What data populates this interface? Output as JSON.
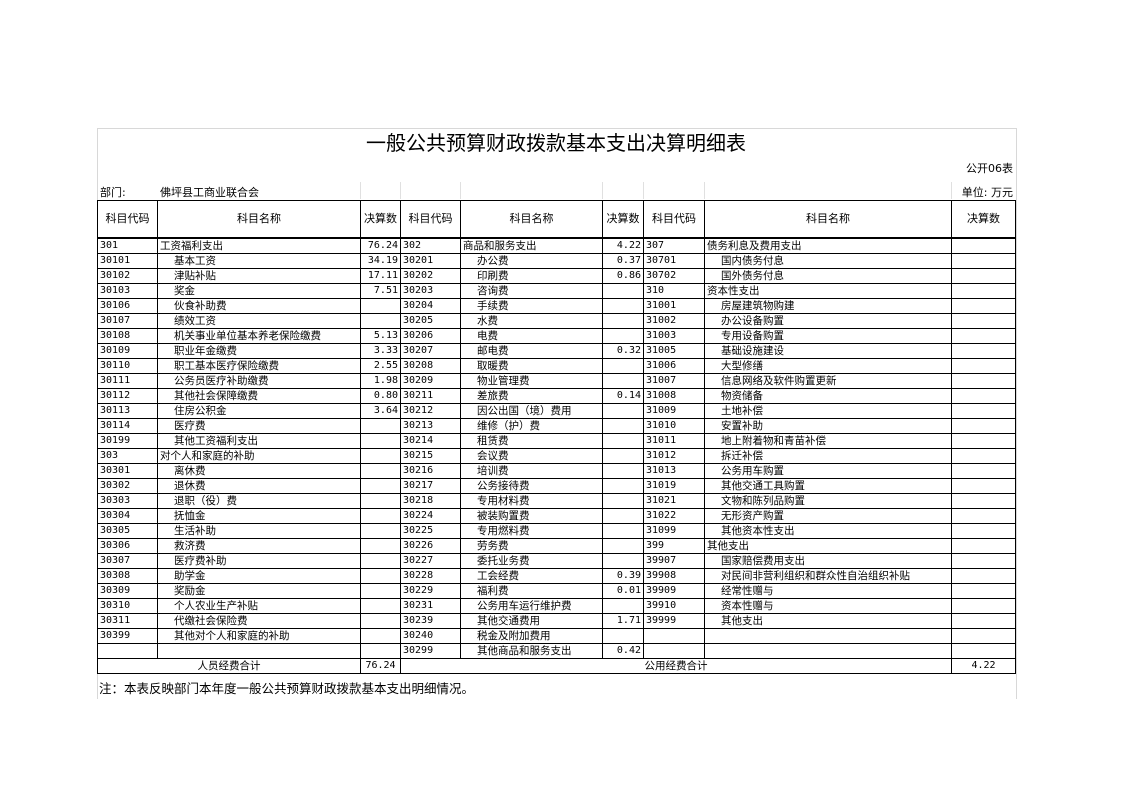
{
  "title": "一般公共预算财政拨款基本支出决算明细表",
  "form_no": "公开06表",
  "dept_label": "部门:",
  "dept_name": "佛坪县工商业联合会",
  "unit": "单位: 万元",
  "headers": [
    "科目代码",
    "科目名称",
    "决算数",
    "科目代码",
    "科目名称",
    "决算数",
    "科目代码",
    "科目名称",
    "决算数"
  ],
  "rows": [
    [
      [
        "301",
        "工资福利支出",
        "76.24",
        0
      ],
      [
        "302",
        "商品和服务支出",
        "4.22",
        0
      ],
      [
        "307",
        "债务利息及费用支出",
        "",
        0
      ]
    ],
    [
      [
        "30101",
        "基本工资",
        "34.19",
        1
      ],
      [
        "30201",
        "办公费",
        "0.37",
        1
      ],
      [
        "30701",
        "国内债务付息",
        "",
        1
      ]
    ],
    [
      [
        "30102",
        "津贴补贴",
        "17.11",
        1
      ],
      [
        "30202",
        "印刷费",
        "0.86",
        1
      ],
      [
        "30702",
        "国外债务付息",
        "",
        1
      ]
    ],
    [
      [
        "30103",
        "奖金",
        "7.51",
        1
      ],
      [
        "30203",
        "咨询费",
        "",
        1
      ],
      [
        "310",
        "资本性支出",
        "",
        0
      ]
    ],
    [
      [
        "30106",
        "伙食补助费",
        "",
        1
      ],
      [
        "30204",
        "手续费",
        "",
        1
      ],
      [
        "31001",
        "房屋建筑物购建",
        "",
        1
      ]
    ],
    [
      [
        "30107",
        "绩效工资",
        "",
        1
      ],
      [
        "30205",
        "水费",
        "",
        1
      ],
      [
        "31002",
        "办公设备购置",
        "",
        1
      ]
    ],
    [
      [
        "30108",
        "机关事业单位基本养老保险缴费",
        "5.13",
        1
      ],
      [
        "30206",
        "电费",
        "",
        1
      ],
      [
        "31003",
        "专用设备购置",
        "",
        1
      ]
    ],
    [
      [
        "30109",
        "职业年金缴费",
        "3.33",
        1
      ],
      [
        "30207",
        "邮电费",
        "0.32",
        1
      ],
      [
        "31005",
        "基础设施建设",
        "",
        1
      ]
    ],
    [
      [
        "30110",
        "职工基本医疗保险缴费",
        "2.55",
        1
      ],
      [
        "30208",
        "取暖费",
        "",
        1
      ],
      [
        "31006",
        "大型修缮",
        "",
        1
      ]
    ],
    [
      [
        "30111",
        "公务员医疗补助缴费",
        "1.98",
        1
      ],
      [
        "30209",
        "物业管理费",
        "",
        1
      ],
      [
        "31007",
        "信息网络及软件购置更新",
        "",
        1
      ]
    ],
    [
      [
        "30112",
        "其他社会保障缴费",
        "0.80",
        1
      ],
      [
        "30211",
        "差旅费",
        "0.14",
        1
      ],
      [
        "31008",
        "物资储备",
        "",
        1
      ]
    ],
    [
      [
        "30113",
        "住房公积金",
        "3.64",
        1
      ],
      [
        "30212",
        "因公出国（境）费用",
        "",
        1
      ],
      [
        "31009",
        "土地补偿",
        "",
        1
      ]
    ],
    [
      [
        "30114",
        "医疗费",
        "",
        1
      ],
      [
        "30213",
        "维修（护）费",
        "",
        1
      ],
      [
        "31010",
        "安置补助",
        "",
        1
      ]
    ],
    [
      [
        "30199",
        "其他工资福利支出",
        "",
        1
      ],
      [
        "30214",
        "租赁费",
        "",
        1
      ],
      [
        "31011",
        "地上附着物和青苗补偿",
        "",
        1
      ]
    ],
    [
      [
        "303",
        "对个人和家庭的补助",
        "",
        0
      ],
      [
        "30215",
        "会议费",
        "",
        1
      ],
      [
        "31012",
        "拆迁补偿",
        "",
        1
      ]
    ],
    [
      [
        "30301",
        "离休费",
        "",
        1
      ],
      [
        "30216",
        "培训费",
        "",
        1
      ],
      [
        "31013",
        "公务用车购置",
        "",
        1
      ]
    ],
    [
      [
        "30302",
        "退休费",
        "",
        1
      ],
      [
        "30217",
        "公务接待费",
        "",
        1
      ],
      [
        "31019",
        "其他交通工具购置",
        "",
        1
      ]
    ],
    [
      [
        "30303",
        "退职（役）费",
        "",
        1
      ],
      [
        "30218",
        "专用材料费",
        "",
        1
      ],
      [
        "31021",
        "文物和陈列品购置",
        "",
        1
      ]
    ],
    [
      [
        "30304",
        "抚恤金",
        "",
        1
      ],
      [
        "30224",
        "被装购置费",
        "",
        1
      ],
      [
        "31022",
        "无形资产购置",
        "",
        1
      ]
    ],
    [
      [
        "30305",
        "生活补助",
        "",
        1
      ],
      [
        "30225",
        "专用燃料费",
        "",
        1
      ],
      [
        "31099",
        "其他资本性支出",
        "",
        1
      ]
    ],
    [
      [
        "30306",
        "救济费",
        "",
        1
      ],
      [
        "30226",
        "劳务费",
        "",
        1
      ],
      [
        "399",
        "其他支出",
        "",
        0
      ]
    ],
    [
      [
        "30307",
        "医疗费补助",
        "",
        1
      ],
      [
        "30227",
        "委托业务费",
        "",
        1
      ],
      [
        "39907",
        "国家赔偿费用支出",
        "",
        1
      ]
    ],
    [
      [
        "30308",
        "助学金",
        "",
        1
      ],
      [
        "30228",
        "工会经费",
        "0.39",
        1
      ],
      [
        "39908",
        "对民间非营利组织和群众性自治组织补贴",
        "",
        1
      ]
    ],
    [
      [
        "30309",
        "奖励金",
        "",
        1
      ],
      [
        "30229",
        "福利费",
        "0.01",
        1
      ],
      [
        "39909",
        "经常性赠与",
        "",
        1
      ]
    ],
    [
      [
        "30310",
        "个人农业生产补贴",
        "",
        1
      ],
      [
        "30231",
        "公务用车运行维护费",
        "",
        1
      ],
      [
        "39910",
        "资本性赠与",
        "",
        1
      ]
    ],
    [
      [
        "30311",
        "代缴社会保险费",
        "",
        1
      ],
      [
        "30239",
        "其他交通费用",
        "1.71",
        1
      ],
      [
        "39999",
        "其他支出",
        "",
        1
      ]
    ],
    [
      [
        "30399",
        "其他对个人和家庭的补助",
        "",
        1
      ],
      [
        "30240",
        "税金及附加费用",
        "",
        1
      ],
      [
        "",
        "",
        "",
        0
      ]
    ],
    [
      [
        "",
        "",
        "",
        0
      ],
      [
        "30299",
        "其他商品和服务支出",
        "0.42",
        1
      ],
      [
        "",
        "",
        "",
        0
      ]
    ]
  ],
  "totals": {
    "personnel_label": "人员经费合计",
    "personnel_value": "76.24",
    "public_label": "公用经费合计",
    "public_value": "4.22"
  },
  "note": "注：本表反映部门本年度一般公共预算财政拨款基本支出明细情况。"
}
